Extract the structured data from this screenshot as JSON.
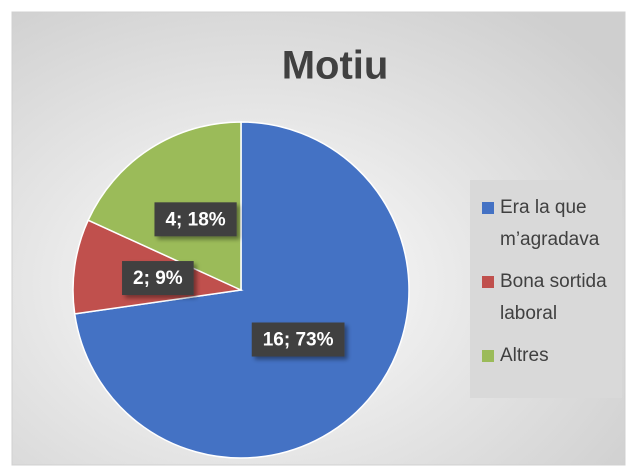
{
  "chart_data": {
    "type": "pie",
    "title": "Motiu",
    "categories": [
      "Era la que m’agradava",
      "Bona sortida laboral",
      "Altres"
    ],
    "values": [
      16,
      2,
      4
    ],
    "value_labels": [
      "16; 73%",
      "2; 9%",
      "4; 18%"
    ],
    "colors": [
      "#4472c4",
      "#c0504d",
      "#9bbb59"
    ],
    "legend": "right"
  }
}
